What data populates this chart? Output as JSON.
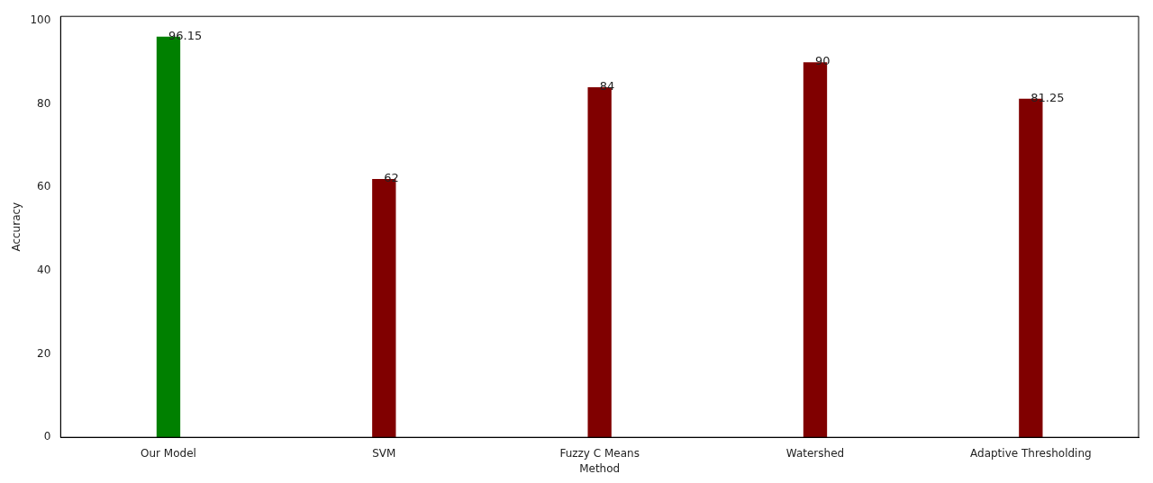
{
  "chart_data": {
    "type": "bar",
    "xlabel": "Method",
    "ylabel": "Accuracy",
    "categories": [
      "Our Model",
      "SVM",
      "Fuzzy C Means",
      "Watershed",
      "Adaptive Thresholding"
    ],
    "values": [
      96.15,
      62,
      84,
      90,
      81.25
    ],
    "colors": [
      "#008000",
      "#800000",
      "#800000",
      "#800000",
      "#800000"
    ],
    "ylim": [
      0,
      101
    ],
    "yticks": [
      0,
      20,
      40,
      60,
      80,
      100
    ],
    "grid": false,
    "legend": false,
    "data_labels": true
  }
}
